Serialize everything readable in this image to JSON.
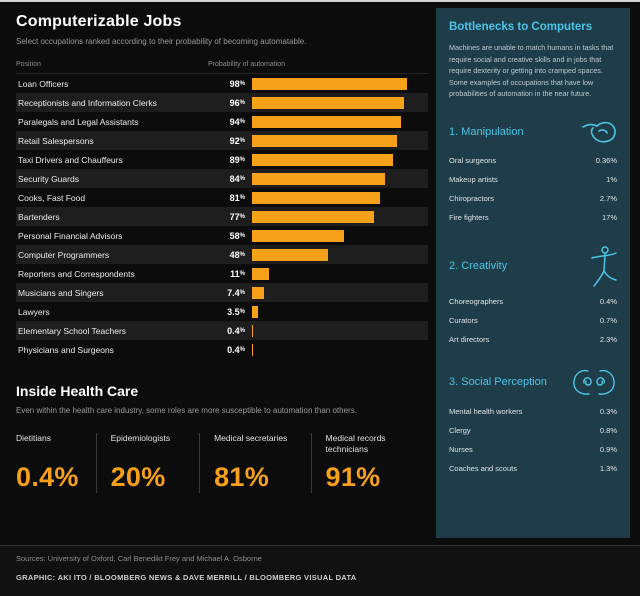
{
  "colors": {
    "accent_orange": "#F7A11A",
    "accent_cyan": "#4BC4E8",
    "panel_bg": "#1F3D49"
  },
  "main": {
    "title": "Computerizable Jobs",
    "subtitle": "Select occupations ranked according to their probability of becoming automatable.",
    "columns": {
      "position": "Position",
      "probability": "Probability of automation"
    }
  },
  "chart_data": {
    "type": "bar",
    "orientation": "horizontal",
    "title": "Computerizable Jobs",
    "xlabel": "Probability of automation",
    "xlim": [
      0,
      100
    ],
    "bar_color": "#F7A11A",
    "categories": [
      "Loan Officers",
      "Receptionists and Information Clerks",
      "Paralegals and Legal Assistants",
      "Retail Salespersons",
      "Taxi Drivers and Chauffeurs",
      "Security Guards",
      "Cooks, Fast Food",
      "Bartenders",
      "Personal Financial Advisors",
      "Computer Programmers",
      "Reporters and Correspondents",
      "Musicians and Singers",
      "Lawyers",
      "Elementary School Teachers",
      "Physicians and Surgeons"
    ],
    "values": [
      98,
      96,
      94,
      92,
      89,
      84,
      81,
      77,
      58,
      48,
      11,
      7.4,
      3.5,
      0.4,
      0.4
    ],
    "value_labels": [
      "98%",
      "96%",
      "94%",
      "92%",
      "89%",
      "84%",
      "81%",
      "77%",
      "58%",
      "48%",
      "11%",
      "7.4%",
      "3.5%",
      "0.4%",
      "0.4%"
    ]
  },
  "health": {
    "title": "Inside Health Care",
    "subtitle": "Even within the health care industry, some roles are more susceptible to automation than others.",
    "stats": [
      {
        "label": "Dietitians",
        "value": "0.4%"
      },
      {
        "label": "Epidemiologists",
        "value": "20%"
      },
      {
        "label": "Medical secretaries",
        "value": "81%"
      },
      {
        "label": "Medical records technicians",
        "value": "91%"
      }
    ]
  },
  "sidebar": {
    "title": "Bottlenecks to Computers",
    "description": "Machines are unable to match humans in tasks that require social and creative skills and in jobs that require dexterity or getting into cramped spaces. Some examples of occupations that have low probabilities of automation in the near future.",
    "sections": [
      {
        "heading": "1. Manipulation",
        "icon": "hand-icon",
        "items": [
          {
            "label": "Oral surgeons",
            "value": "0.36%"
          },
          {
            "label": "Makeup artists",
            "value": "1%"
          },
          {
            "label": "Chiropractors",
            "value": "2.7%"
          },
          {
            "label": "Fire fighters",
            "value": "17%"
          }
        ]
      },
      {
        "heading": "2. Creativity",
        "icon": "dancer-icon",
        "items": [
          {
            "label": "Choreographers",
            "value": "0.4%"
          },
          {
            "label": "Curators",
            "value": "0.7%"
          },
          {
            "label": "Art directors",
            "value": "2.3%"
          }
        ]
      },
      {
        "heading": "3. Social Perception",
        "icon": "social-heads-icon",
        "items": [
          {
            "label": "Mental health workers",
            "value": "0.3%"
          },
          {
            "label": "Clergy",
            "value": "0.8%"
          },
          {
            "label": "Nurses",
            "value": "0.9%"
          },
          {
            "label": "Coaches and scouts",
            "value": "1.3%"
          }
        ]
      }
    ]
  },
  "footer": {
    "sources": "Sources: University of Oxford, Carl Benedikt Frey and Michael A. Osborne",
    "credit": "GRAPHIC: AKI ITO / BLOOMBERG NEWS & DAVE MERRILL / BLOOMBERG VISUAL DATA"
  }
}
